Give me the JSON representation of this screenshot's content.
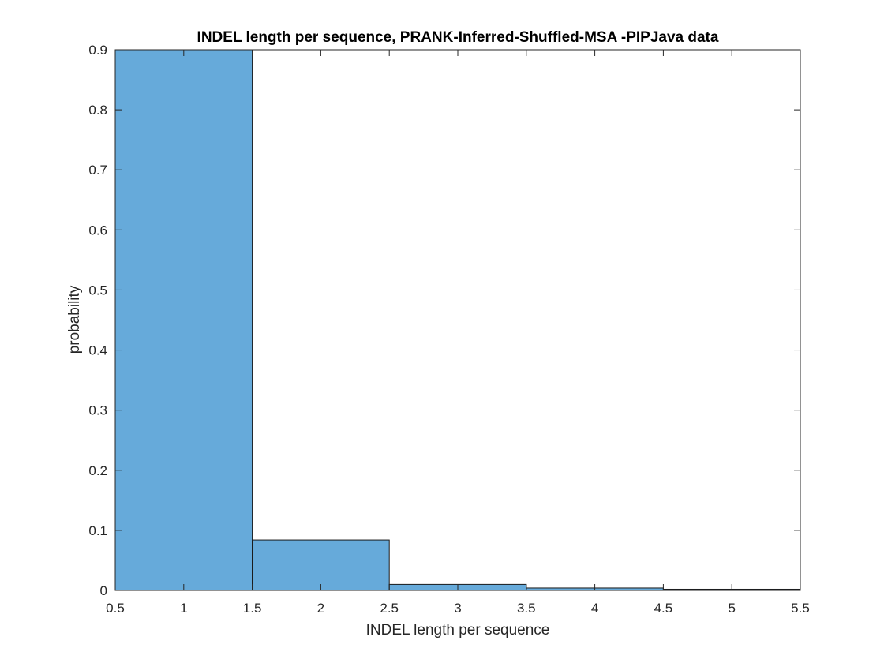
{
  "chart_data": {
    "type": "bar",
    "title": "INDEL length per sequence, PRANK-Inferred-Shuffled-MSA -PIPJava data",
    "xlabel": "INDEL length per sequence",
    "ylabel": "probability",
    "xlim": [
      0.5,
      5.5
    ],
    "ylim": [
      0,
      0.9
    ],
    "xticks": [
      "0.5",
      "1",
      "1.5",
      "2",
      "2.5",
      "3",
      "3.5",
      "4",
      "4.5",
      "5",
      "5.5"
    ],
    "yticks": [
      "0",
      "0.1",
      "0.2",
      "0.3",
      "0.4",
      "0.5",
      "0.6",
      "0.7",
      "0.8",
      "0.9"
    ],
    "bins": [
      {
        "left": 0.5,
        "right": 1.5,
        "value": 0.9
      },
      {
        "left": 1.5,
        "right": 2.5,
        "value": 0.084
      },
      {
        "left": 2.5,
        "right": 3.5,
        "value": 0.01
      },
      {
        "left": 3.5,
        "right": 4.5,
        "value": 0.004
      },
      {
        "left": 4.5,
        "right": 5.5,
        "value": 0.002
      }
    ],
    "bar_color": "#66AADA",
    "bar_edge_color": "#1a1a1a",
    "grid": false,
    "legend": "none"
  }
}
